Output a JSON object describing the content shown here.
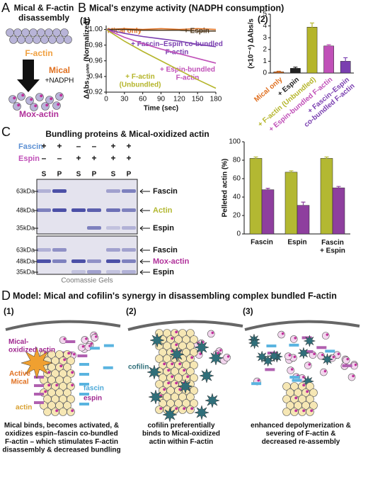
{
  "panel_a": {
    "letter": "A",
    "title": "Mical & F-actin\ndisassembly",
    "f_actin": "F-actin",
    "enzyme": "Mical",
    "cofactor": "+NADPH",
    "product": "Mox-actin"
  },
  "panel_b": {
    "letter": "B",
    "title": "Mical's enzyme activity (NADPH consumption)"
  },
  "chart_data": [
    {
      "type": "line",
      "label": "(1)",
      "xlabel": "Time (sec)",
      "ylabel": "ΔAbs₃₄₀ₙₘ (Normalized)",
      "x": [
        0,
        30,
        60,
        90,
        120,
        150,
        180
      ],
      "xlim": [
        0,
        180
      ],
      "xticks": [
        0,
        30,
        60,
        90,
        120,
        150,
        180
      ],
      "ylim": [
        0.92,
        1.005
      ],
      "yticks": [
        0.92,
        0.94,
        0.96,
        0.98,
        {
          "value": 1,
          "label": "1.00"
        }
      ],
      "series": [
        {
          "name": "Mical only",
          "color": "#e07020",
          "values": [
            1.0,
            1.001,
            1.0,
            1.001,
            1.0,
            1.001,
            1.0
          ]
        },
        {
          "name": "+ Espin",
          "color": "#4a3418",
          "values": [
            1.0,
            1.0,
            0.999,
            0.999,
            0.999,
            0.998,
            0.998
          ]
        },
        {
          "name": "+ Fascin–Espin co-bundled\nF-actin",
          "color": "#7a3fb0",
          "values": [
            1.0,
            0.995,
            0.991,
            0.988,
            0.985,
            0.981,
            0.978
          ]
        },
        {
          "name": "+ Espin-bundled\nF-actin",
          "color": "#c050b8",
          "values": [
            1.0,
            0.99,
            0.982,
            0.975,
            0.969,
            0.963,
            0.957
          ]
        },
        {
          "name": "+ F-actin\n(Unbundled)",
          "color": "#b5b52a",
          "values": [
            1.0,
            0.985,
            0.972,
            0.96,
            0.948,
            0.936,
            0.925
          ]
        }
      ]
    },
    {
      "type": "bar",
      "label": "(2)",
      "ylabel": "(×10⁻⁴) ΔAbs/s",
      "ylim": [
        0,
        5
      ],
      "yticks": [
        0,
        1,
        2,
        3,
        4,
        5
      ],
      "categories": [
        "Mical only",
        "+ Espin",
        "+ F-actin (Unbundled)",
        "+ Espin-bundled F-actin",
        "+ Fascin–Espin\nco-bundled F-actin"
      ],
      "series": [
        {
          "values": [
            0.1,
            0.4,
            3.9,
            2.3,
            1.0
          ],
          "errors": [
            0.05,
            0.1,
            0.35,
            0.1,
            0.3
          ],
          "colors": [
            "#e07020",
            "#222222",
            "#b5b52a",
            "#c050b8",
            "#7a3fb0"
          ]
        }
      ]
    },
    {
      "type": "bar",
      "ylabel": "Pelleted actin (%)",
      "ylim": [
        0,
        100
      ],
      "yticks": [
        0,
        20,
        40,
        60,
        80,
        100
      ],
      "categories": [
        "Fascin",
        "Espin",
        "Fascin\n+ Espin"
      ],
      "series": [
        {
          "color": "#b3b832",
          "values": [
            82,
            67,
            82
          ],
          "errors": [
            1.5,
            1.5,
            1.5
          ]
        },
        {
          "color": "#8e3f9e",
          "values": [
            48,
            31,
            50
          ],
          "errors": [
            1.5,
            3.5,
            1.5
          ]
        }
      ]
    }
  ],
  "panel_c": {
    "letter": "C",
    "title": "Bundling proteins & Mical-oxidized actin",
    "row1": "Fascin",
    "row2": "Espin",
    "fascin_signs": [
      "+",
      "+",
      "–",
      "–",
      "+",
      "+"
    ],
    "espin_signs": [
      "–",
      "–",
      "+",
      "+",
      "+",
      "+"
    ],
    "lanes": [
      "S",
      "P",
      "S",
      "P",
      "S",
      "P"
    ],
    "gel1_markers": [
      "63kDa",
      "48kDa",
      "35kDa"
    ],
    "gel1_labels": [
      "Fascin",
      "Actin",
      "Espin"
    ],
    "gel2_markers": [
      "63kDa",
      "48kDa",
      "35kDa"
    ],
    "gel2_labels": [
      "Fascin",
      "Mox-actin",
      "Espin"
    ],
    "footer": "Coomassie Gels"
  },
  "panel_d": {
    "letter": "D",
    "title": "Model: Mical and cofilin's synergy in disassembling complex bundled F-actin",
    "steps": [
      "(1)",
      "(2)",
      "(3)"
    ],
    "captions": [
      "Mical binds, becomes activated, &\noxidizes espin–fascin co-bundled\nF-actin – which stimulates F-actin\ndisassembly & decreased bundling",
      "cofilin preferentially\nbinds to Mical-oxidized\nactin within F-actin",
      "enhanced depolymerization &\nsevering of F-actin &\ndecreased re-assembly"
    ],
    "ox_actin": "Mical-\noxidized actin",
    "active_mical": "Active\nMical",
    "actin": "actin",
    "fascin": "fascin",
    "espin": "espin",
    "cofilin": "cofilin"
  }
}
